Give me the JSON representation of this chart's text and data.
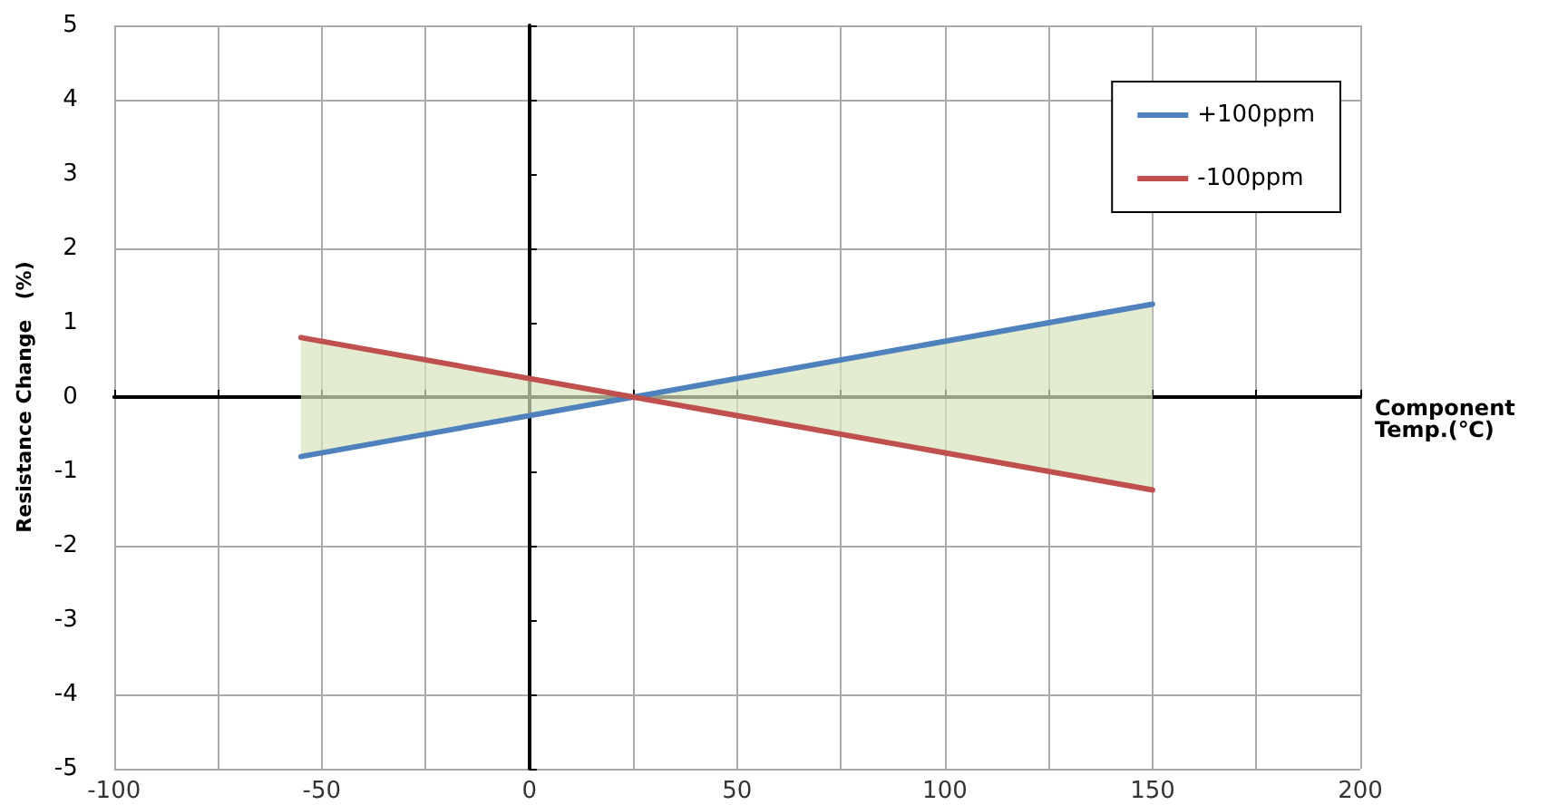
{
  "chart_data": {
    "type": "line",
    "xlabel": "Component Temp.(℃)",
    "ylabel": "Resistance Change　(%)",
    "x": [
      -55,
      25,
      150
    ],
    "series": [
      {
        "name": "+100ppm",
        "color": "#4f81bd",
        "values": [
          -0.8,
          0,
          1.25
        ],
        "lower": [
          -0.8,
          0,
          -1.25
        ],
        "upper": [
          0.8,
          0,
          1.25
        ]
      },
      {
        "name": "-100ppm",
        "color": "#c0504d",
        "values": [
          0.8,
          0,
          -1.25
        ]
      }
    ],
    "xlim": [
      -100,
      200
    ],
    "xticks": [
      -100,
      {
        "value": -75,
        "label": null
      },
      -50,
      {
        "value": -25,
        "label": null
      },
      0,
      {
        "value": 25,
        "label": null
      },
      50,
      {
        "value": 75,
        "label": null
      },
      100,
      {
        "value": 125,
        "label": null
      },
      150,
      {
        "value": 175,
        "label": null
      },
      200
    ],
    "ylim": [
      -5,
      5
    ],
    "yticks": [
      -5,
      -4,
      -3,
      -2,
      -1,
      0,
      1,
      2,
      3,
      4,
      5
    ],
    "grid": true,
    "legend": "top right",
    "marker": "none",
    "line_style": "solid"
  }
}
